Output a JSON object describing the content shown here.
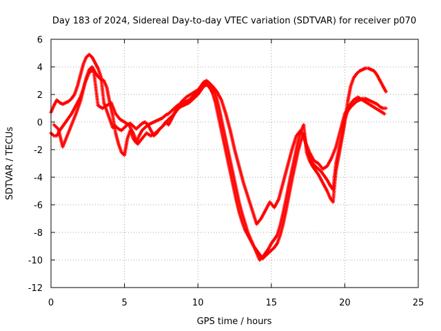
{
  "chart_data": {
    "type": "scatter",
    "title": "Day 183 of 2024, Sidereal Day-to-day VTEC variation (SDTVAR) for receiver p070",
    "xlabel": "GPS time / hours",
    "ylabel": "SDTVAR / TECUs",
    "xlim": [
      0,
      25
    ],
    "ylim": [
      -12,
      6
    ],
    "xticks": [
      0,
      5,
      10,
      15,
      20,
      25
    ],
    "yticks": [
      -12,
      -10,
      -8,
      -6,
      -4,
      -2,
      0,
      2,
      4,
      6
    ],
    "grid": true,
    "legend": "none",
    "marker": "plus",
    "color": "#ff0000",
    "series": [
      {
        "x": [
          0.0,
          0.2,
          0.4,
          0.6,
          0.8,
          1.0,
          1.2,
          1.4,
          1.6,
          1.8,
          2.0,
          2.2,
          2.4,
          2.6,
          2.8,
          3.0,
          3.2,
          3.4,
          3.6,
          3.8,
          4.0,
          4.2,
          4.4,
          4.6,
          4.8,
          5.0,
          5.2,
          5.4,
          5.6,
          5.8,
          6.0,
          6.2,
          6.4,
          6.6,
          6.8,
          7.0,
          7.2,
          7.4,
          7.6,
          7.8,
          8.0,
          8.2,
          8.4,
          8.6,
          8.8,
          9.0,
          9.2,
          9.4,
          9.6,
          9.8,
          10.0,
          10.2,
          10.4,
          10.6,
          10.8,
          11.0,
          11.2,
          11.4,
          11.6,
          11.8,
          12.0,
          12.2,
          12.4,
          12.6,
          12.8,
          13.0,
          13.2,
          13.4,
          13.6,
          13.8,
          14.0,
          14.2,
          14.4,
          14.6,
          14.8,
          15.0,
          15.2,
          15.4,
          15.6,
          15.8,
          16.0,
          16.2,
          16.4,
          16.6,
          16.8,
          17.0,
          17.2,
          17.4,
          17.6,
          17.8,
          18.0,
          18.2,
          18.4,
          18.6,
          18.8,
          19.0,
          19.2,
          19.4,
          19.6,
          19.8,
          20.0,
          20.2,
          20.4,
          20.6,
          20.8,
          21.0,
          21.2,
          21.4,
          21.6,
          21.8,
          22.0,
          22.2,
          22.4,
          22.6,
          22.8
        ],
        "y": [
          0.7,
          1.2,
          1.6,
          1.4,
          1.3,
          1.4,
          1.5,
          1.7,
          2.0,
          2.6,
          3.4,
          4.2,
          4.7,
          4.9,
          4.7,
          4.3,
          3.9,
          3.3,
          1.4,
          0.8,
          0.2,
          -0.4,
          -0.3,
          -0.5,
          -0.6,
          -0.4,
          -0.2,
          -0.1,
          -0.3,
          -0.5,
          -0.3,
          -0.1,
          0.0,
          -0.2,
          -0.1,
          0.0,
          0.1,
          0.2,
          0.3,
          0.5,
          0.6,
          0.8,
          1.0,
          1.2,
          1.3,
          1.4,
          1.5,
          1.6,
          1.8,
          2.0,
          2.3,
          2.6,
          2.9,
          3.0,
          2.8,
          2.5,
          2.0,
          1.2,
          0.2,
          -0.8,
          -1.8,
          -2.8,
          -3.8,
          -4.8,
          -5.8,
          -6.6,
          -7.3,
          -8.0,
          -8.5,
          -9.0,
          -9.5,
          -10.0,
          -9.8,
          -9.5,
          -9.2,
          -8.8,
          -8.5,
          -8.2,
          -7.5,
          -6.6,
          -5.6,
          -4.5,
          -3.5,
          -2.5,
          -1.5,
          -0.7,
          -0.2,
          -2.2,
          -2.8,
          -3.2,
          -3.5,
          -3.8,
          -4.2,
          -4.6,
          -5.0,
          -5.5,
          -5.8,
          -3.5,
          -2.4,
          -1.2,
          0.0,
          1.5,
          2.6,
          3.2,
          3.5,
          3.7,
          3.8,
          3.9,
          3.9,
          3.8,
          3.7,
          3.4,
          3.0,
          2.6,
          2.2
        ]
      },
      {
        "x": [
          0.0,
          0.2,
          0.4,
          0.6,
          0.8,
          1.0,
          1.2,
          1.4,
          1.6,
          1.8,
          2.0,
          2.2,
          2.4,
          2.6,
          2.8,
          3.0,
          3.2,
          3.4,
          3.6,
          3.8,
          4.0,
          4.2,
          4.4,
          4.6,
          4.8,
          5.0,
          5.2,
          5.4,
          5.6,
          5.8,
          6.0,
          6.2,
          6.4,
          6.6,
          6.8,
          7.0,
          7.2,
          7.4,
          7.6,
          7.8,
          8.0,
          8.2,
          8.4,
          8.6,
          8.8,
          9.0,
          9.2,
          9.4,
          9.6,
          9.8,
          10.0,
          10.2,
          10.4,
          10.6,
          10.8,
          11.0,
          11.2,
          11.4,
          11.6,
          11.8,
          12.0,
          12.2,
          12.4,
          12.6,
          12.8,
          13.0,
          13.2,
          13.4,
          13.6,
          13.8,
          14.0,
          14.2,
          14.4,
          14.6,
          14.8,
          15.0,
          15.2,
          15.4,
          15.6,
          15.8,
          16.0,
          16.2,
          16.4,
          16.6,
          16.8,
          17.0,
          17.2,
          17.4,
          17.6,
          17.8,
          18.0,
          18.2,
          18.4,
          18.6,
          18.8,
          19.0,
          19.2,
          19.4,
          19.6,
          19.8,
          20.0,
          20.2,
          20.4,
          20.6,
          20.8,
          21.0,
          21.2,
          21.4,
          21.6,
          21.8,
          22.0,
          22.2,
          22.4,
          22.6,
          22.8
        ],
        "y": [
          -0.8,
          -1.0,
          -1.0,
          -0.6,
          -0.3,
          0.0,
          0.3,
          0.6,
          1.0,
          1.4,
          1.8,
          2.4,
          3.2,
          3.8,
          4.0,
          3.6,
          3.3,
          3.1,
          3.0,
          2.5,
          1.4,
          0.5,
          -0.8,
          -1.6,
          -2.2,
          -2.4,
          -1.2,
          -0.6,
          -1.2,
          -1.5,
          -1.0,
          -0.6,
          -0.4,
          -0.2,
          -0.6,
          -1.0,
          -0.8,
          -0.5,
          -0.3,
          0.0,
          -0.2,
          0.2,
          0.6,
          0.9,
          1.1,
          1.2,
          1.3,
          1.4,
          1.6,
          1.8,
          2.0,
          2.3,
          2.6,
          2.7,
          2.5,
          2.1,
          1.4,
          0.4,
          -0.6,
          -1.6,
          -2.6,
          -3.6,
          -4.6,
          -5.6,
          -6.5,
          -7.2,
          -7.8,
          -8.2,
          -8.6,
          -9.0,
          -9.3,
          -9.6,
          -9.9,
          -9.7,
          -9.5,
          -9.3,
          -9.1,
          -8.8,
          -8.2,
          -7.4,
          -6.4,
          -5.3,
          -4.2,
          -3.2,
          -2.2,
          -1.4,
          -0.9,
          -1.8,
          -2.6,
          -3.0,
          -3.2,
          -3.4,
          -3.6,
          -3.9,
          -4.2,
          -4.6,
          -4.9,
          -3.0,
          -2.0,
          -1.0,
          0.2,
          0.8,
          1.1,
          1.3,
          1.5,
          1.6,
          1.7,
          1.7,
          1.6,
          1.5,
          1.4,
          1.3,
          1.1,
          1.0,
          1.0
        ]
      },
      {
        "x": [
          0.2,
          0.5,
          0.8,
          1.1,
          1.4,
          1.7,
          2.0,
          2.3,
          2.6,
          2.9,
          3.2,
          3.5,
          3.8,
          4.1,
          4.4,
          4.7,
          5.0,
          5.3,
          5.6,
          5.9,
          6.2,
          6.5,
          6.8,
          7.1,
          7.4,
          7.7,
          8.0,
          8.3,
          8.6,
          8.9,
          9.2,
          9.5,
          9.8,
          10.1,
          10.4,
          10.7,
          11.0,
          11.3,
          11.6,
          11.9,
          12.2,
          12.5,
          12.8,
          13.1,
          13.4,
          13.7,
          14.0,
          14.3,
          14.6,
          14.9,
          15.2,
          15.5,
          15.8,
          16.1,
          16.4,
          16.7,
          17.0,
          17.3,
          17.6,
          17.9,
          18.2,
          18.5,
          18.8,
          19.1,
          19.4,
          19.7,
          20.0,
          20.3,
          20.6,
          20.9,
          21.2,
          21.5,
          21.8,
          22.1,
          22.4,
          22.7
        ],
        "y": [
          -0.2,
          -0.5,
          -1.8,
          -1.0,
          -0.2,
          0.6,
          1.5,
          2.8,
          3.6,
          3.8,
          1.2,
          1.0,
          1.2,
          1.4,
          0.6,
          0.2,
          0.0,
          -0.2,
          -0.8,
          -1.6,
          -1.2,
          -0.8,
          -1.0,
          -0.8,
          -0.5,
          -0.2,
          0.2,
          0.5,
          1.0,
          1.5,
          1.8,
          2.0,
          2.2,
          2.4,
          2.7,
          2.9,
          2.6,
          2.2,
          1.6,
          0.6,
          -0.6,
          -2.0,
          -3.2,
          -4.4,
          -5.4,
          -6.4,
          -7.4,
          -7.0,
          -6.4,
          -5.8,
          -6.2,
          -5.6,
          -4.4,
          -3.2,
          -2.0,
          -1.0,
          -0.6,
          -1.4,
          -2.2,
          -2.8,
          -3.0,
          -3.4,
          -3.2,
          -2.6,
          -1.8,
          -0.6,
          0.6,
          1.2,
          1.6,
          1.8,
          1.6,
          1.4,
          1.2,
          1.0,
          0.8,
          0.6
        ]
      }
    ]
  }
}
